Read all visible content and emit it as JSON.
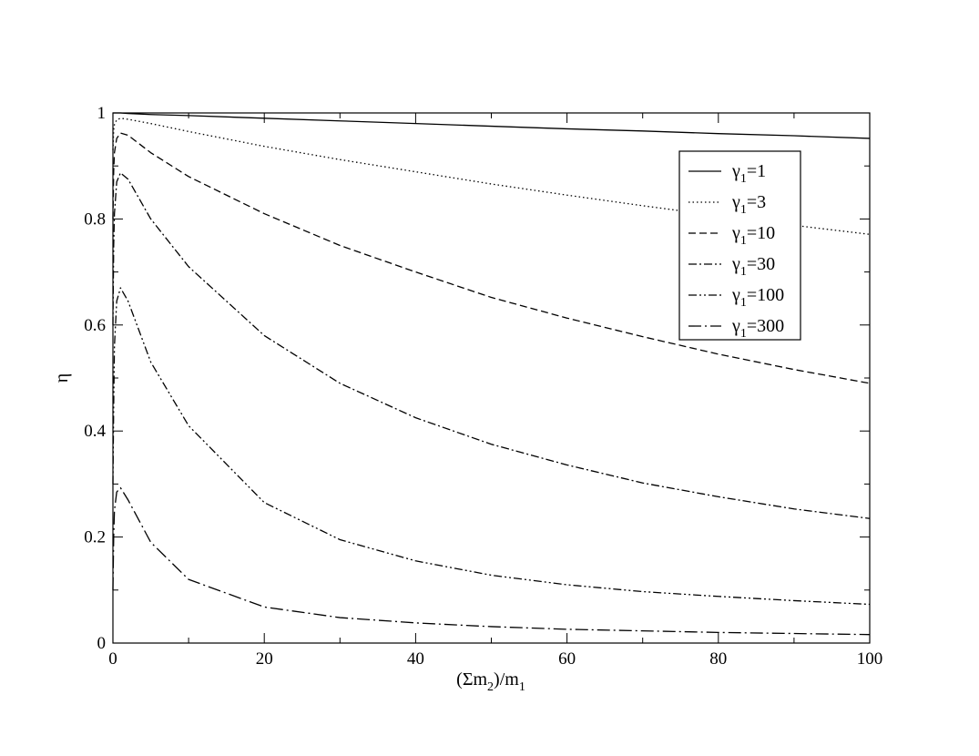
{
  "chart_data": {
    "type": "line",
    "xlabel": {
      "pre": "(Σm",
      "sub1": "2",
      "mid": ")/m",
      "sub2": "1"
    },
    "ylabel": "η",
    "xlim": [
      0,
      100
    ],
    "ylim": [
      0,
      1
    ],
    "xticks": [
      "0",
      "20",
      "40",
      "60",
      "80",
      "100"
    ],
    "yticks": [
      "0",
      "0.2",
      "0.4",
      "0.6",
      "0.8",
      "1"
    ],
    "grid": false,
    "legend_position": "top-right",
    "series": [
      {
        "name": "γ₁=1",
        "legend": {
          "main": "γ",
          "sub": "1",
          "rest": "=1"
        },
        "dash": "solid",
        "x": [
          0,
          0.1,
          0.2,
          0.5,
          1,
          2,
          5,
          10,
          20,
          30,
          40,
          50,
          60,
          70,
          80,
          90,
          100
        ],
        "values": [
          1.0,
          1.0,
          1.0,
          1.0,
          1.0,
          0.999,
          0.997,
          0.995,
          0.99,
          0.985,
          0.98,
          0.975,
          0.97,
          0.966,
          0.961,
          0.957,
          0.952
        ]
      },
      {
        "name": "γ₁=3",
        "legend": {
          "main": "γ",
          "sub": "1",
          "rest": "=3"
        },
        "dash": "dotted",
        "x": [
          0,
          0.1,
          0.2,
          0.5,
          1,
          2,
          5,
          10,
          20,
          30,
          40,
          50,
          60,
          70,
          80,
          90,
          100
        ],
        "values": [
          0.93,
          0.968,
          0.978,
          0.987,
          0.99,
          0.988,
          0.98,
          0.965,
          0.937,
          0.912,
          0.889,
          0.866,
          0.845,
          0.825,
          0.806,
          0.788,
          0.771
        ]
      },
      {
        "name": "γ₁=10",
        "legend": {
          "main": "γ",
          "sub": "1",
          "rest": "=10"
        },
        "dash": "dashed",
        "x": [
          0,
          0.1,
          0.2,
          0.5,
          1,
          2,
          5,
          10,
          20,
          30,
          40,
          50,
          60,
          70,
          80,
          90,
          100
        ],
        "values": [
          0.8,
          0.89,
          0.925,
          0.952,
          0.962,
          0.958,
          0.925,
          0.88,
          0.81,
          0.75,
          0.7,
          0.652,
          0.613,
          0.578,
          0.545,
          0.516,
          0.49
        ]
      },
      {
        "name": "γ₁=30",
        "legend": {
          "main": "γ",
          "sub": "1",
          "rest": "=30"
        },
        "dash": "dashdot",
        "x": [
          0,
          0.1,
          0.2,
          0.5,
          1,
          2,
          5,
          10,
          20,
          30,
          40,
          50,
          60,
          70,
          80,
          90,
          100
        ],
        "values": [
          0.6,
          0.75,
          0.81,
          0.87,
          0.887,
          0.875,
          0.8,
          0.71,
          0.58,
          0.49,
          0.425,
          0.375,
          0.336,
          0.302,
          0.276,
          0.253,
          0.235
        ]
      },
      {
        "name": "γ₁=100",
        "legend": {
          "main": "γ",
          "sub": "1",
          "rest": "=100"
        },
        "dash": "dashdotdot",
        "x": [
          0,
          0.1,
          0.2,
          0.5,
          1,
          2,
          5,
          10,
          20,
          30,
          40,
          50,
          60,
          70,
          80,
          90,
          100
        ],
        "values": [
          0.3,
          0.45,
          0.56,
          0.645,
          0.67,
          0.645,
          0.53,
          0.41,
          0.265,
          0.195,
          0.155,
          0.128,
          0.11,
          0.097,
          0.088,
          0.08,
          0.073
        ]
      },
      {
        "name": "γ₁=300",
        "legend": {
          "main": "γ",
          "sub": "1",
          "rest": "=300"
        },
        "dash": "longdashdot",
        "x": [
          0,
          0.1,
          0.2,
          0.5,
          1,
          2,
          5,
          10,
          20,
          30,
          40,
          50,
          60,
          70,
          80,
          90,
          100
        ],
        "values": [
          0.1,
          0.2,
          0.25,
          0.285,
          0.293,
          0.27,
          0.19,
          0.12,
          0.068,
          0.048,
          0.038,
          0.031,
          0.026,
          0.023,
          0.02,
          0.018,
          0.016
        ]
      }
    ]
  }
}
